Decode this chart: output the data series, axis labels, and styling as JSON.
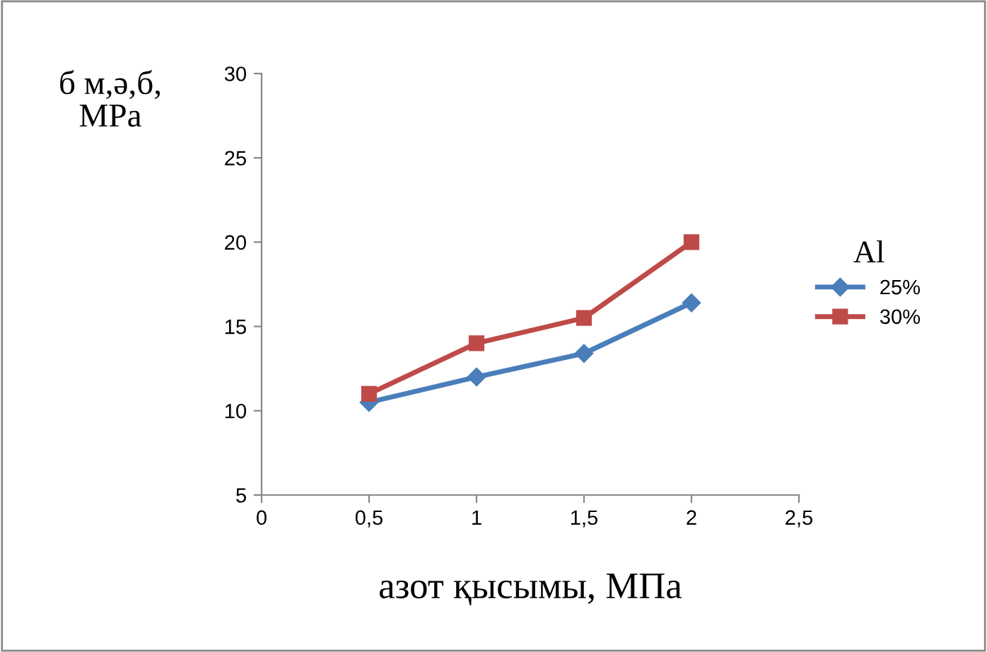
{
  "chart_data": {
    "type": "line",
    "xlabel": "азот қысымы, МПа",
    "ylabel": "б м,ә,б,\nMPa",
    "legend_title": "Al",
    "x": [
      0.5,
      1,
      1.5,
      2
    ],
    "series": [
      {
        "name": "25%",
        "color": "#4a7ebb",
        "marker": "diamond",
        "values": [
          10.5,
          12.0,
          13.4,
          16.4
        ]
      },
      {
        "name": "30%",
        "color": "#be4b48",
        "marker": "square",
        "values": [
          11.0,
          14.0,
          15.5,
          20.0
        ]
      }
    ],
    "xlim": [
      0,
      2.5
    ],
    "xticks": [
      0,
      {
        "value": 0.5,
        "label": "0,5"
      },
      1,
      {
        "value": 1.5,
        "label": "1,5"
      },
      2,
      {
        "value": 2.5,
        "label": "2,5"
      }
    ],
    "ylim": [
      5,
      30
    ],
    "yticks": [
      5,
      10,
      15,
      20,
      25,
      30
    ],
    "legend": "right",
    "line_style": "solid"
  }
}
